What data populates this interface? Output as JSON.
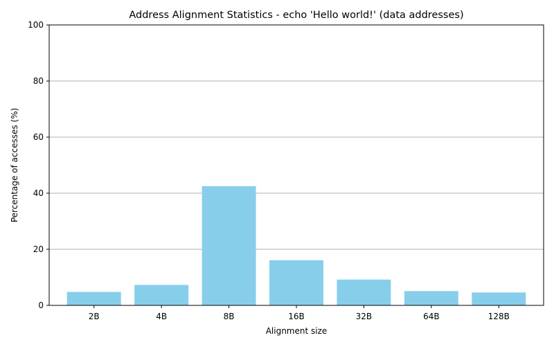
{
  "chart_data": {
    "type": "bar",
    "title": "Address Alignment Statistics - echo 'Hello world!' (data addresses)",
    "xlabel": "Alignment size",
    "ylabel": "Percentage of accesses (%)",
    "categories": [
      "2B",
      "4B",
      "8B",
      "16B",
      "32B",
      "64B",
      "128B"
    ],
    "values": [
      4.8,
      7.3,
      42.5,
      16.1,
      9.2,
      5.1,
      4.6
    ],
    "ylim": [
      0,
      100
    ],
    "yticks": [
      0,
      20,
      40,
      60,
      80,
      100
    ],
    "grid": "horizontal",
    "bar_color": "#87ceeb",
    "grid_color": "#b0b0b0"
  }
}
